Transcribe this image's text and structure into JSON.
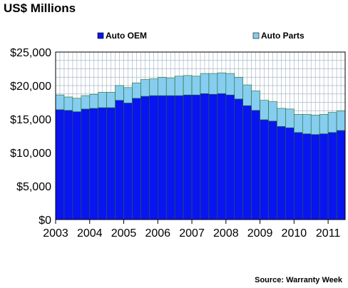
{
  "chart_data": {
    "type": "bar",
    "stacked": true,
    "title": "US$ Millions",
    "source": "Source: Warranty Week",
    "ylim": [
      0,
      25000
    ],
    "yticks": [
      "$0",
      "$5,000",
      "$10,000",
      "$15,000",
      "$20,000",
      "$25,000"
    ],
    "ytick_values": [
      0,
      5000,
      10000,
      15000,
      20000,
      25000
    ],
    "year_labels": [
      "2003",
      "2004",
      "2005",
      "2006",
      "2007",
      "2008",
      "2009",
      "2010",
      "2011"
    ],
    "grid": true,
    "legend": "top",
    "categories": [
      "2003 Q1",
      "2003 Q2",
      "2003 Q3",
      "2003 Q4",
      "2004 Q1",
      "2004 Q2",
      "2004 Q3",
      "2004 Q4",
      "2005 Q1",
      "2005 Q2",
      "2005 Q3",
      "2005 Q4",
      "2006 Q1",
      "2006 Q2",
      "2006 Q3",
      "2006 Q4",
      "2007 Q1",
      "2007 Q2",
      "2007 Q3",
      "2007 Q4",
      "2008 Q1",
      "2008 Q2",
      "2008 Q3",
      "2008 Q4",
      "2009 Q1",
      "2009 Q2",
      "2009 Q3",
      "2009 Q4",
      "2010 Q1",
      "2010 Q2",
      "2010 Q3",
      "2010 Q4",
      "2011 Q1",
      "2011 Q2"
    ],
    "series": [
      {
        "name": "Auto OEM",
        "color": "#0a14f0",
        "values": [
          16400,
          16300,
          16100,
          16500,
          16600,
          16700,
          16700,
          17800,
          17400,
          18100,
          18400,
          18500,
          18500,
          18500,
          18500,
          18600,
          18600,
          18800,
          18700,
          18800,
          18600,
          18000,
          17000,
          16300,
          14900,
          14700,
          13900,
          13700,
          13000,
          12800,
          12700,
          12800,
          13000,
          13300
        ]
      },
      {
        "name": "Auto Parts",
        "color": "#87cdf0",
        "values": [
          2200,
          2000,
          2000,
          2000,
          2100,
          2300,
          2300,
          2200,
          2300,
          2300,
          2500,
          2500,
          2700,
          2600,
          2900,
          2900,
          2800,
          3000,
          3100,
          3100,
          3200,
          3200,
          3100,
          2900,
          2900,
          2900,
          2700,
          2800,
          2700,
          2900,
          2900,
          2900,
          3000,
          2900
        ]
      }
    ]
  }
}
